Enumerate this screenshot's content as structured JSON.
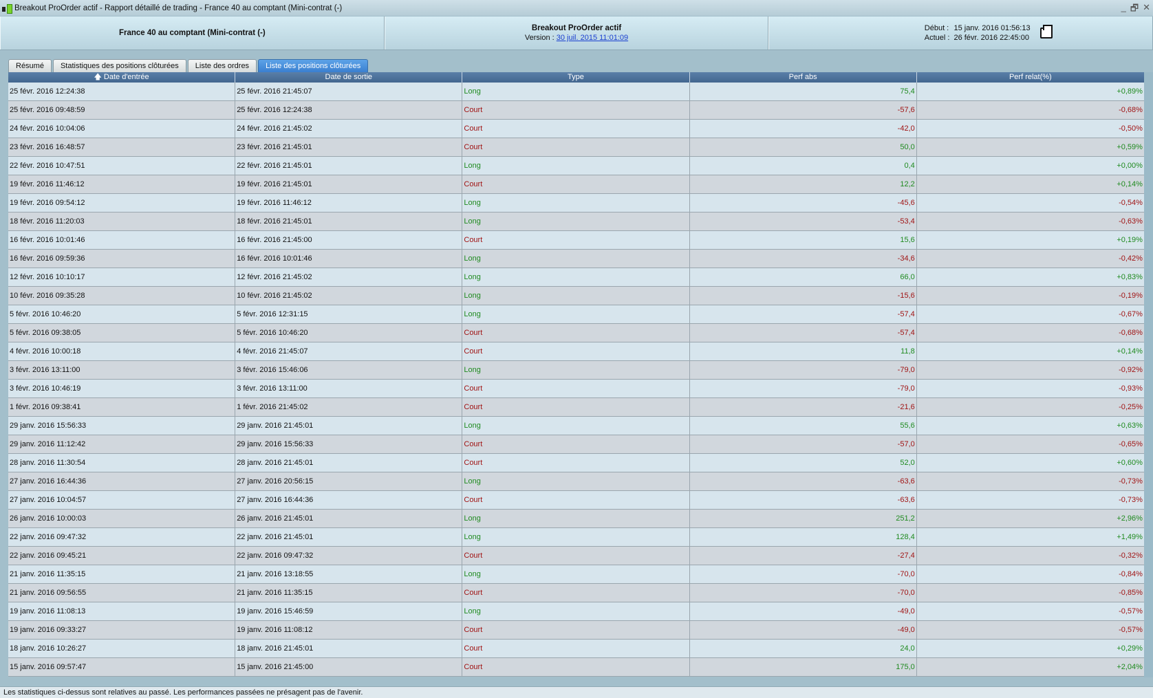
{
  "window": {
    "title": "Breakout ProOrder actif - Rapport détaillé de trading - France 40 au comptant (Mini-contrat  (-)",
    "controls": [
      "_",
      "🗗",
      "✕"
    ]
  },
  "header": {
    "instrument": "France 40 au comptant (Mini-contrat  (-)",
    "strategy": "Breakout ProOrder actif",
    "version_label": "Version : ",
    "version_link": "30 juil. 2015 11:01:09",
    "start_label": "Début :",
    "start_value": "15 janv. 2016 01:56:13",
    "current_label": "Actuel :",
    "current_value": "26 févr. 2016 22:45:00"
  },
  "tabs": [
    {
      "label": "Résumé"
    },
    {
      "label": "Statistiques des positions clôturées"
    },
    {
      "label": "Liste des ordres"
    },
    {
      "label": "Liste des positions clôturées",
      "active": true
    }
  ],
  "table": {
    "columns": [
      "Date d'entrée",
      "Date de sortie",
      "Type",
      "Perf abs",
      "Perf relat(%)"
    ],
    "sort_icon": "arrow-up",
    "rows": [
      [
        "25 févr. 2016 12:24:38",
        "25 févr. 2016 21:45:07",
        "Long",
        "75,4",
        "+0,89%"
      ],
      [
        "25 févr. 2016 09:48:59",
        "25 févr. 2016 12:24:38",
        "Court",
        "-57,6",
        "-0,68%"
      ],
      [
        "24 févr. 2016 10:04:06",
        "24 févr. 2016 21:45:02",
        "Court",
        "-42,0",
        "-0,50%"
      ],
      [
        "23 févr. 2016 16:48:57",
        "23 févr. 2016 21:45:01",
        "Court",
        "50,0",
        "+0,59%"
      ],
      [
        "22 févr. 2016 10:47:51",
        "22 févr. 2016 21:45:01",
        "Long",
        "0,4",
        "+0,00%"
      ],
      [
        "19 févr. 2016 11:46:12",
        "19 févr. 2016 21:45:01",
        "Court",
        "12,2",
        "+0,14%"
      ],
      [
        "19 févr. 2016 09:54:12",
        "19 févr. 2016 11:46:12",
        "Long",
        "-45,6",
        "-0,54%"
      ],
      [
        "18 févr. 2016 11:20:03",
        "18 févr. 2016 21:45:01",
        "Long",
        "-53,4",
        "-0,63%"
      ],
      [
        "16 févr. 2016 10:01:46",
        "16 févr. 2016 21:45:00",
        "Court",
        "15,6",
        "+0,19%"
      ],
      [
        "16 févr. 2016 09:59:36",
        "16 févr. 2016 10:01:46",
        "Long",
        "-34,6",
        "-0,42%"
      ],
      [
        "12 févr. 2016 10:10:17",
        "12 févr. 2016 21:45:02",
        "Long",
        "66,0",
        "+0,83%"
      ],
      [
        "10 févr. 2016 09:35:28",
        "10 févr. 2016 21:45:02",
        "Long",
        "-15,6",
        "-0,19%"
      ],
      [
        "5 févr. 2016 10:46:20",
        "5 févr. 2016 12:31:15",
        "Long",
        "-57,4",
        "-0,67%"
      ],
      [
        "5 févr. 2016 09:38:05",
        "5 févr. 2016 10:46:20",
        "Court",
        "-57,4",
        "-0,68%"
      ],
      [
        "4 févr. 2016 10:00:18",
        "4 févr. 2016 21:45:07",
        "Court",
        "11,8",
        "+0,14%"
      ],
      [
        "3 févr. 2016 13:11:00",
        "3 févr. 2016 15:46:06",
        "Long",
        "-79,0",
        "-0,92%"
      ],
      [
        "3 févr. 2016 10:46:19",
        "3 févr. 2016 13:11:00",
        "Court",
        "-79,0",
        "-0,93%"
      ],
      [
        "1 févr. 2016 09:38:41",
        "1 févr. 2016 21:45:02",
        "Court",
        "-21,6",
        "-0,25%"
      ],
      [
        "29 janv. 2016 15:56:33",
        "29 janv. 2016 21:45:01",
        "Long",
        "55,6",
        "+0,63%"
      ],
      [
        "29 janv. 2016 11:12:42",
        "29 janv. 2016 15:56:33",
        "Court",
        "-57,0",
        "-0,65%"
      ],
      [
        "28 janv. 2016 11:30:54",
        "28 janv. 2016 21:45:01",
        "Court",
        "52,0",
        "+0,60%"
      ],
      [
        "27 janv. 2016 16:44:36",
        "27 janv. 2016 20:56:15",
        "Long",
        "-63,6",
        "-0,73%"
      ],
      [
        "27 janv. 2016 10:04:57",
        "27 janv. 2016 16:44:36",
        "Court",
        "-63,6",
        "-0,73%"
      ],
      [
        "26 janv. 2016 10:00:03",
        "26 janv. 2016 21:45:01",
        "Long",
        "251,2",
        "+2,96%"
      ],
      [
        "22 janv. 2016 09:47:32",
        "22 janv. 2016 21:45:01",
        "Long",
        "128,4",
        "+1,49%"
      ],
      [
        "22 janv. 2016 09:45:21",
        "22 janv. 2016 09:47:32",
        "Court",
        "-27,4",
        "-0,32%"
      ],
      [
        "21 janv. 2016 11:35:15",
        "21 janv. 2016 13:18:55",
        "Long",
        "-70,0",
        "-0,84%"
      ],
      [
        "21 janv. 2016 09:56:55",
        "21 janv. 2016 11:35:15",
        "Court",
        "-70,0",
        "-0,85%"
      ],
      [
        "19 janv. 2016 11:08:13",
        "19 janv. 2016 15:46:59",
        "Long",
        "-49,0",
        "-0,57%"
      ],
      [
        "19 janv. 2016 09:33:27",
        "19 janv. 2016 11:08:12",
        "Court",
        "-49,0",
        "-0,57%"
      ],
      [
        "18 janv. 2016 10:26:27",
        "18 janv. 2016 21:45:01",
        "Court",
        "24,0",
        "+0,29%"
      ],
      [
        "15 janv. 2016 09:57:47",
        "15 janv. 2016 21:45:00",
        "Court",
        "175,0",
        "+2,04%"
      ]
    ]
  },
  "colors": {
    "long": "#1f8a1f",
    "court": "#a01414",
    "positive": "#1f8a1f",
    "negative": "#a01414",
    "header": "#42668f",
    "active_tab": "#3a7fd0"
  },
  "footer": {
    "disclaimer": "Les statistiques ci-dessus sont relatives au passé. Les performances passées ne présagent pas de l'avenir."
  }
}
